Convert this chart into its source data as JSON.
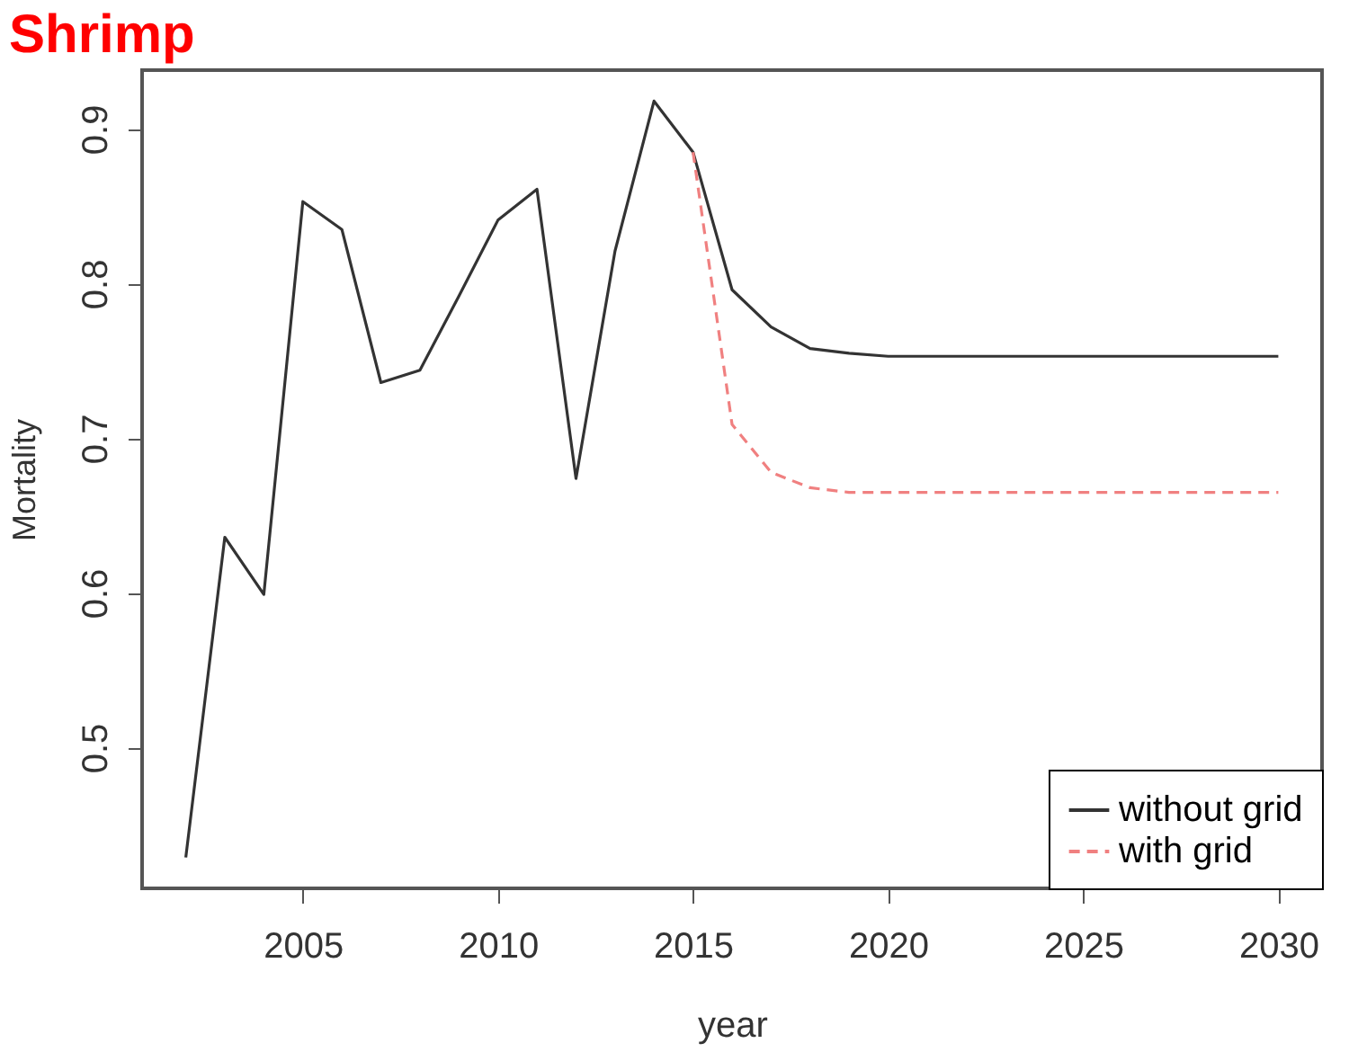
{
  "chart_data": {
    "type": "line",
    "title": "Shrimp",
    "xlabel": "year",
    "ylabel": "Mortality",
    "x": [
      2002,
      2003,
      2004,
      2005,
      2006,
      2007,
      2008,
      2009,
      2010,
      2011,
      2012,
      2013,
      2014,
      2015,
      2016,
      2017,
      2018,
      2019,
      2020,
      2021,
      2022,
      2023,
      2024,
      2025,
      2026,
      2027,
      2028,
      2029,
      2030
    ],
    "series": [
      {
        "name": "without grid",
        "color": "#333333",
        "line_style": "solid",
        "values": [
          0.429,
          0.636,
          0.599,
          0.853,
          0.835,
          0.736,
          0.744,
          0.792,
          0.841,
          0.861,
          0.674,
          0.821,
          0.918,
          0.885,
          0.796,
          0.772,
          0.758,
          0.755,
          0.753,
          0.753,
          0.753,
          0.753,
          0.753,
          0.753,
          0.753,
          0.753,
          0.753,
          0.753,
          0.753
        ]
      },
      {
        "name": "with grid",
        "color": "#f08080",
        "line_style": "dashed",
        "values": [
          null,
          null,
          null,
          null,
          null,
          null,
          null,
          null,
          null,
          null,
          null,
          null,
          null,
          0.885,
          0.709,
          0.678,
          0.668,
          0.665,
          0.665,
          0.665,
          0.665,
          0.665,
          0.665,
          0.665,
          0.665,
          0.665,
          0.665,
          0.665,
          0.665
        ]
      }
    ],
    "xlim": [
      2000.88,
      2031.12
    ],
    "ylim": [
      0.409,
      0.938
    ],
    "xticks": [
      2005,
      2010,
      2015,
      2020,
      2025,
      2030
    ],
    "yticks": [
      0.5,
      0.6,
      0.7,
      0.8,
      0.9
    ],
    "grid": false,
    "legend": "bottom right",
    "marker": "none"
  }
}
